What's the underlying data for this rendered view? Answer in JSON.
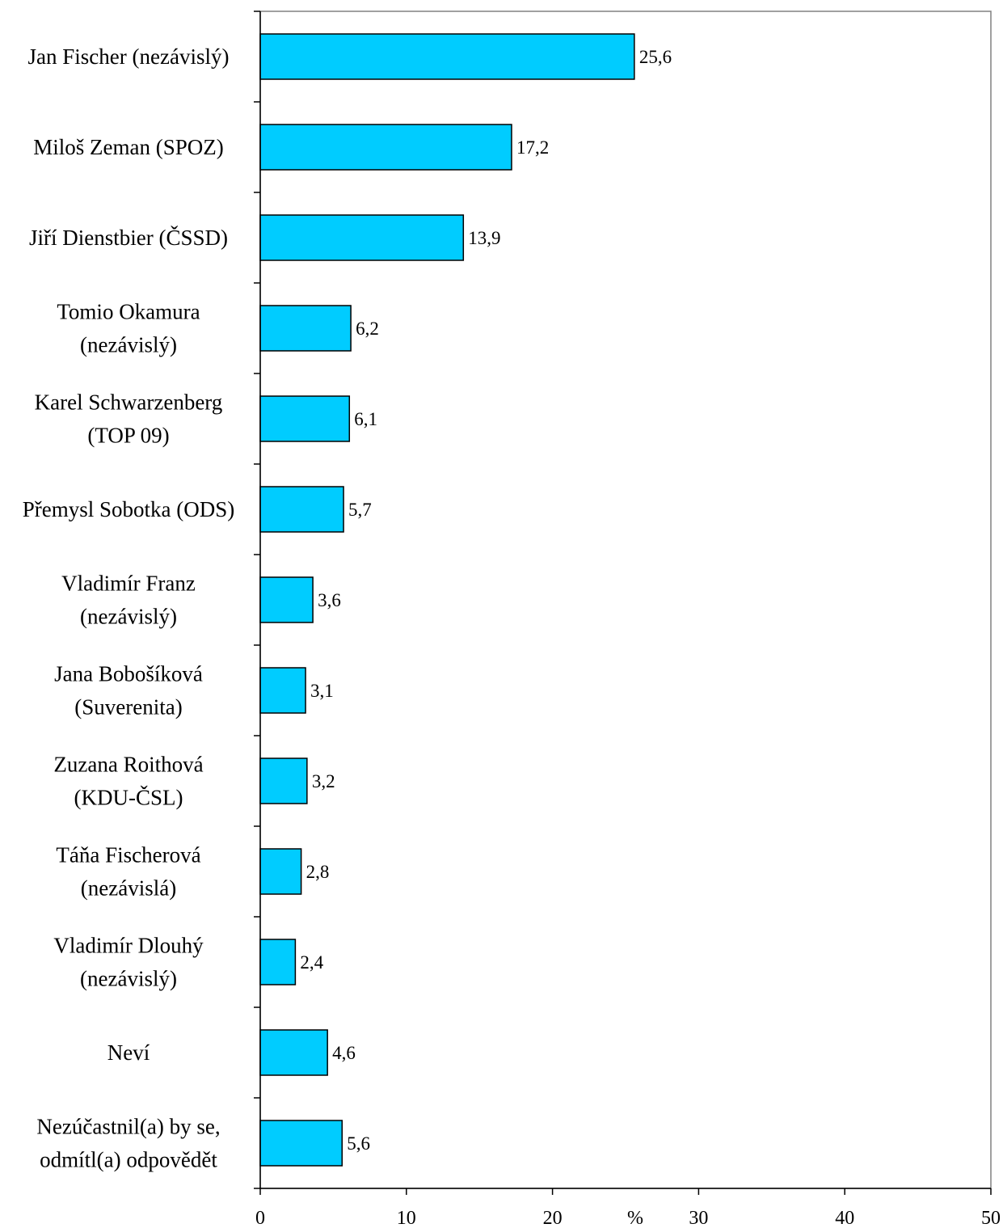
{
  "chart_data": {
    "type": "bar",
    "orientation": "horizontal",
    "categories": [
      [
        "Jan Fischer (nezávislý)"
      ],
      [
        "Miloš Zeman (SPOZ)"
      ],
      [
        "Jiří Dienstbier (ČSSD)"
      ],
      [
        "Tomio Okamura",
        "(nezávislý)"
      ],
      [
        "Karel Schwarzenberg",
        "(TOP 09)"
      ],
      [
        "Přemysl Sobotka (ODS)"
      ],
      [
        "Vladimír Franz",
        "(nezávislý)"
      ],
      [
        "Jana Bobošíková",
        "(Suverenita)"
      ],
      [
        "Zuzana Roithová",
        "(KDU-ČSL)"
      ],
      [
        "Táňa Fischerová",
        "(nezávislá)"
      ],
      [
        "Vladimír Dlouhý",
        "(nezávislý)"
      ],
      [
        "Neví"
      ],
      [
        "Nezúčastnil(a) by se,",
        "odmítl(a) odpovědět"
      ]
    ],
    "values": [
      25.6,
      17.2,
      13.9,
      6.2,
      6.1,
      5.7,
      3.6,
      3.1,
      3.2,
      2.8,
      2.4,
      4.6,
      5.6
    ],
    "value_labels": [
      "25,6",
      "17,2",
      "13,9",
      "6,2",
      "6,1",
      "5,7",
      "3,6",
      "3,1",
      "3,2",
      "2,8",
      "2,4",
      "4,6",
      "5,6"
    ],
    "xlim": [
      0,
      50
    ],
    "xticks": [
      0,
      10,
      20,
      30,
      40,
      50
    ],
    "xlabel": "%",
    "bar_color": "#00CCFF",
    "bar_edge_color": "#000000",
    "frame_color": "#808080",
    "grid": false
  }
}
